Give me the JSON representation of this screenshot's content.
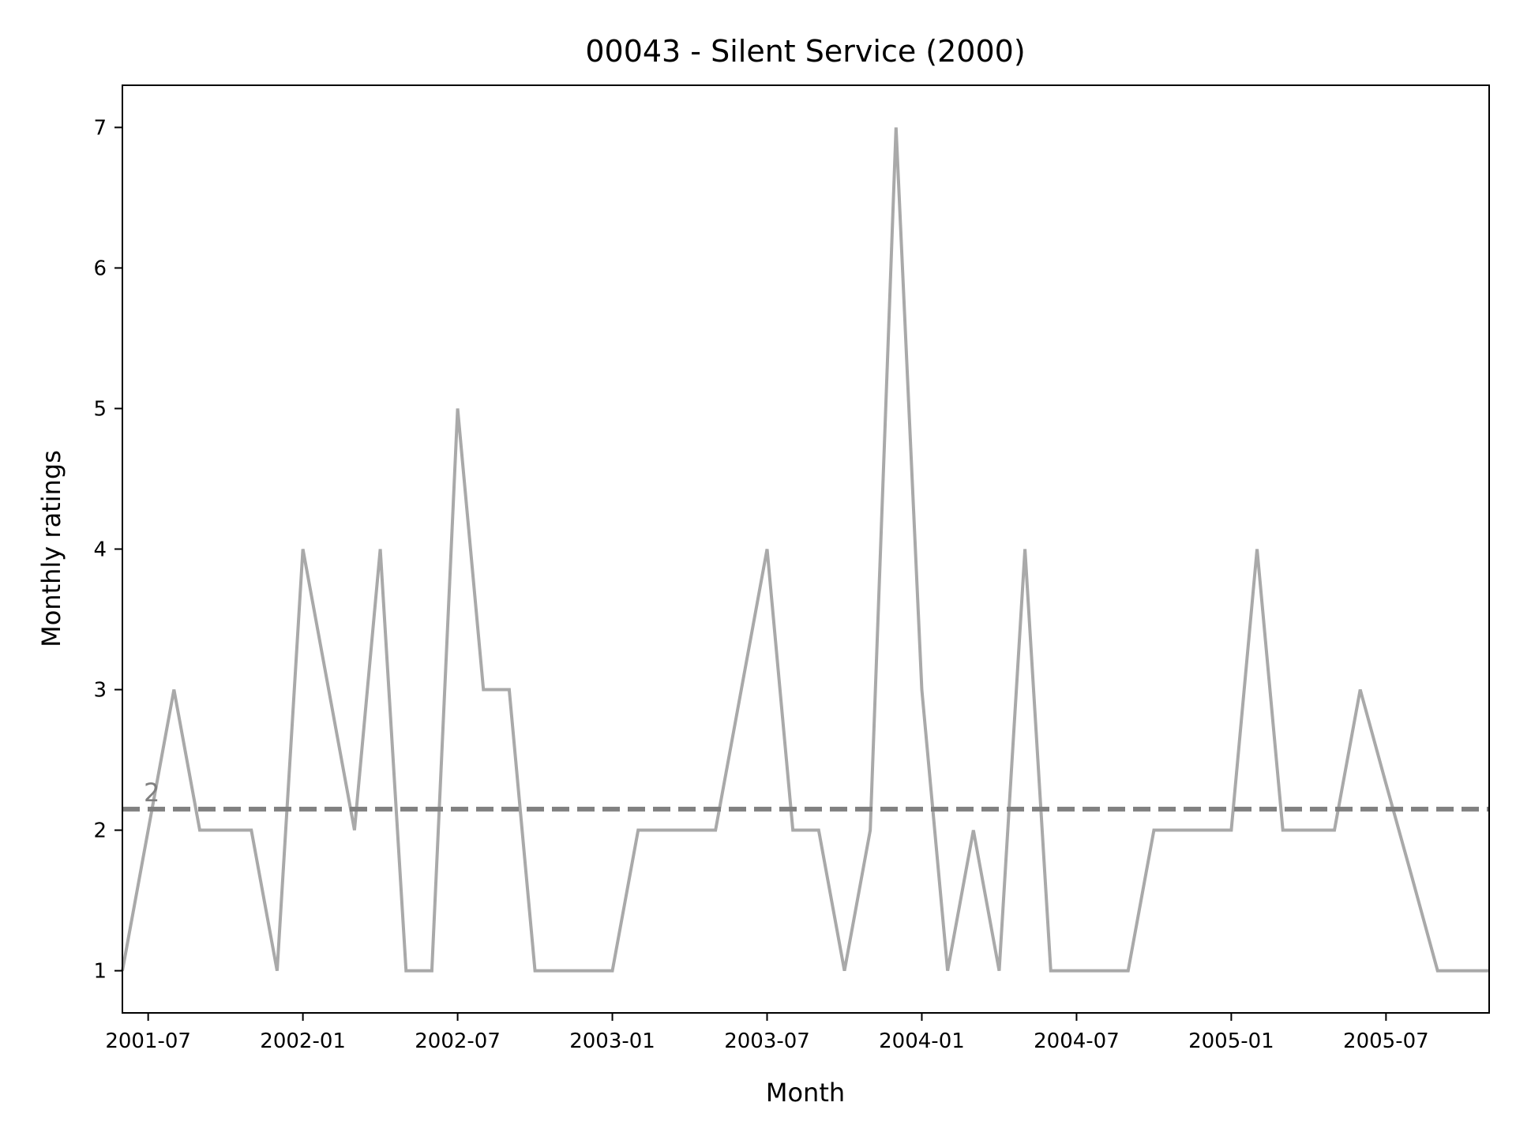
{
  "chart_data": {
    "type": "line",
    "title": "00043 - Silent Service (2000)",
    "xlabel": "Month",
    "ylabel": "Monthly ratings",
    "x_axis": {
      "type": "date",
      "range": [
        "2001-06",
        "2005-11"
      ],
      "ticks": [
        "2001-07",
        "2002-01",
        "2002-07",
        "2003-01",
        "2003-07",
        "2004-01",
        "2004-07",
        "2005-01",
        "2005-07"
      ]
    },
    "y_axis": {
      "range": [
        0.7,
        7.3
      ],
      "ticks": [
        1,
        2,
        3,
        4,
        5,
        6,
        7
      ]
    },
    "grid": false,
    "series": [
      {
        "color": "#a9a9a9",
        "points": [
          [
            "2001-06",
            1
          ],
          [
            "2001-07",
            2
          ],
          [
            "2001-08",
            3
          ],
          [
            "2001-09",
            2
          ],
          [
            "2001-10",
            2
          ],
          [
            "2001-11",
            2
          ],
          [
            "2001-12",
            1
          ],
          [
            "2002-01",
            4
          ],
          [
            "2002-02",
            3
          ],
          [
            "2002-03",
            2
          ],
          [
            "2002-04",
            4
          ],
          [
            "2002-05",
            1
          ],
          [
            "2002-06",
            1
          ],
          [
            "2002-07",
            5
          ],
          [
            "2002-08",
            3
          ],
          [
            "2002-09",
            3
          ],
          [
            "2002-10",
            1
          ],
          [
            "2002-11",
            1
          ],
          [
            "2002-12",
            1
          ],
          [
            "2003-01",
            1
          ],
          [
            "2003-02",
            2
          ],
          [
            "2003-03",
            2
          ],
          [
            "2003-04",
            2
          ],
          [
            "2003-05",
            2
          ],
          [
            "2003-06",
            3
          ],
          [
            "2003-07",
            4
          ],
          [
            "2003-08",
            2
          ],
          [
            "2003-09",
            2
          ],
          [
            "2003-10",
            1
          ],
          [
            "2003-11",
            2
          ],
          [
            "2003-12",
            7
          ],
          [
            "2004-01",
            3
          ],
          [
            "2004-02",
            1
          ],
          [
            "2004-03",
            2
          ],
          [
            "2004-04",
            1
          ],
          [
            "2004-05",
            4
          ],
          [
            "2004-06",
            1
          ],
          [
            "2004-07",
            1
          ],
          [
            "2004-08",
            1
          ],
          [
            "2004-09",
            1
          ],
          [
            "2004-10",
            2
          ],
          [
            "2004-11",
            2
          ],
          [
            "2004-12",
            2
          ],
          [
            "2005-01",
            2
          ],
          [
            "2005-02",
            4
          ],
          [
            "2005-03",
            2
          ],
          [
            "2005-04",
            2
          ],
          [
            "2005-05",
            2
          ],
          [
            "2005-06",
            3
          ],
          [
            "2005-07",
            2.33
          ],
          [
            "2005-08",
            1.67
          ],
          [
            "2005-09",
            1
          ],
          [
            "2005-10",
            1
          ],
          [
            "2005-11",
            1
          ]
        ]
      }
    ],
    "reference_line": {
      "value": 2.15,
      "label": "2",
      "color": "#808080",
      "style": "dashed"
    }
  }
}
